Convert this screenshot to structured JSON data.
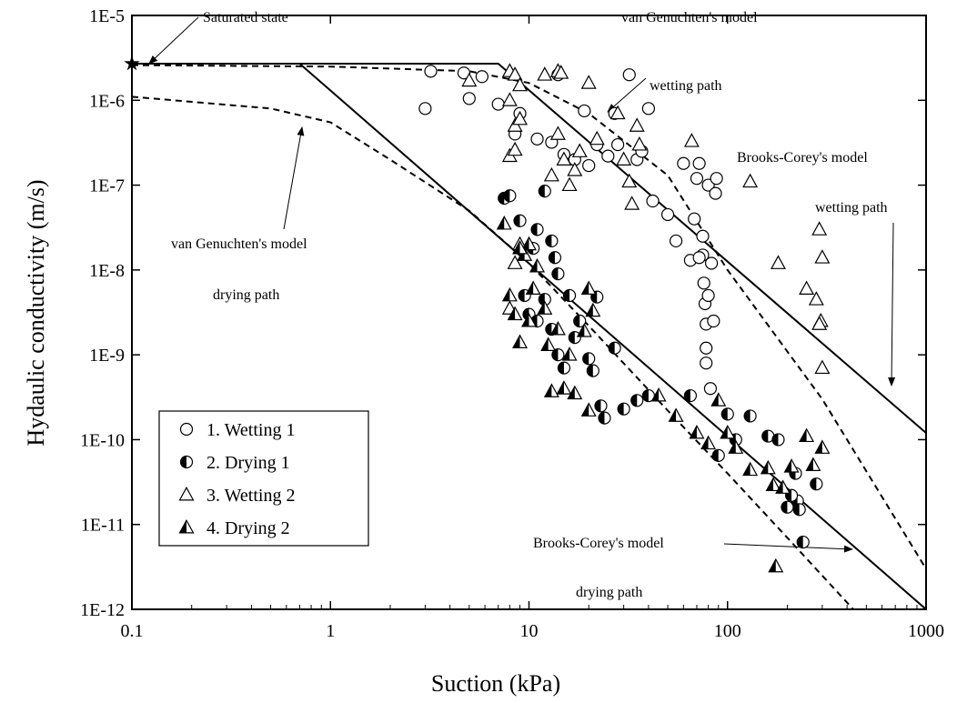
{
  "chart_data": {
    "type": "scatter",
    "x_label": "Suction (kPa)",
    "y_label": "Hydaulic conductivity (m/s)",
    "xscale": "log",
    "yscale": "log",
    "xlim": [
      0.1,
      1000
    ],
    "ylim": [
      1e-12,
      1e-05
    ],
    "xticks": [
      0.1,
      1,
      10,
      100,
      1000
    ],
    "yticks": [
      {
        "value": 1e-12,
        "label": "1E-12"
      },
      {
        "value": 1e-11,
        "label": "1E-11"
      },
      {
        "value": 1e-10,
        "label": "1E-10"
      },
      {
        "value": 1e-09,
        "label": "1E-9"
      },
      {
        "value": 1e-08,
        "label": "1E-8"
      },
      {
        "value": 1e-07,
        "label": "1E-7"
      },
      {
        "value": 1e-06,
        "label": "1E-6"
      },
      {
        "value": 1e-05,
        "label": "1E-5"
      }
    ],
    "legend": "lower left",
    "series": [
      {
        "name": "1. Wetting 1",
        "marker": "circle-open",
        "color": "#000000",
        "x": [
          3,
          3.2,
          4.7,
          5,
          5.8,
          7,
          8.5,
          9,
          11,
          13,
          14,
          15,
          17,
          19,
          20,
          22,
          25,
          27,
          28,
          32,
          35,
          37,
          40,
          42,
          50,
          55,
          60,
          65,
          68,
          70,
          72,
          75,
          76,
          77,
          78,
          78,
          80,
          80,
          82,
          83,
          85,
          87,
          88,
          75,
          72,
          78
        ],
        "values": [
          8e-07,
          2.2e-06,
          2.1e-06,
          1.05e-06,
          1.9e-06,
          9e-07,
          4e-07,
          7e-07,
          3.5e-07,
          3.2e-07,
          2e-06,
          2.3e-07,
          2e-07,
          7.5e-07,
          1.7e-07,
          3e-07,
          2.2e-07,
          7e-07,
          3e-07,
          2e-06,
          2e-07,
          2.5e-07,
          8e-07,
          6.5e-08,
          4.5e-08,
          2.2e-08,
          1.8e-07,
          1.3e-08,
          4e-08,
          1.2e-07,
          1.8e-07,
          1.5e-08,
          7e-09,
          4e-09,
          2.3e-09,
          8e-10,
          1e-07,
          5e-09,
          4e-10,
          1.2e-08,
          2.5e-09,
          8e-08,
          1.2e-07,
          2.5e-08,
          1.4e-08,
          1.2e-09
        ]
      },
      {
        "name": "2. Drying 1",
        "marker": "circle-half",
        "color": "#000000",
        "x": [
          7.5,
          8,
          9,
          10.5,
          11,
          12,
          13,
          13.5,
          14,
          16,
          9.5,
          10,
          11,
          12,
          13,
          14,
          15,
          17,
          18,
          20,
          21,
          22,
          23,
          24,
          27,
          30,
          35,
          40,
          65,
          100,
          110,
          130,
          160,
          180,
          200,
          220,
          225,
          230,
          240,
          280,
          90,
          210
        ],
        "values": [
          7e-08,
          7.5e-08,
          3.8e-08,
          1.8e-08,
          3e-08,
          8.5e-08,
          2.2e-08,
          1.4e-08,
          9e-09,
          5e-09,
          5e-09,
          3e-09,
          2.5e-09,
          4.5e-09,
          2e-09,
          1e-09,
          7e-10,
          1.6e-09,
          2.5e-09,
          9e-10,
          6.5e-10,
          4.8e-09,
          2.5e-10,
          1.8e-10,
          1.2e-09,
          2.3e-10,
          2.9e-10,
          3.3e-10,
          3.3e-10,
          2e-10,
          1e-10,
          1.9e-10,
          1.1e-10,
          1e-10,
          1.6e-11,
          4e-11,
          1.9e-11,
          1.5e-11,
          6.2e-12,
          3e-11,
          6.5e-11,
          2.2e-11
        ]
      },
      {
        "name": "3. Wetting 2",
        "marker": "triangle-open",
        "color": "#000000",
        "x": [
          5,
          8,
          8.5,
          9,
          8,
          8.5,
          9,
          8,
          8.5,
          12,
          14,
          14.5,
          13,
          14,
          15,
          16,
          17,
          18,
          20,
          22,
          28,
          30,
          32,
          33,
          35,
          36,
          66,
          130,
          180,
          250,
          280,
          290,
          300,
          295,
          300,
          290,
          9,
          8.5,
          8
        ],
        "values": [
          1.7e-06,
          2.2e-06,
          2e-06,
          1.5e-06,
          1e-06,
          5e-07,
          6e-07,
          2.2e-07,
          2.6e-07,
          2e-06,
          2.2e-06,
          2.1e-06,
          1.3e-07,
          4e-07,
          2e-07,
          1e-07,
          1.5e-07,
          2.5e-07,
          1.6e-06,
          3.5e-07,
          7e-07,
          2e-07,
          1.1e-07,
          6e-08,
          5e-07,
          3e-07,
          3.3e-07,
          1.1e-07,
          1.2e-08,
          6e-09,
          4.5e-09,
          3e-08,
          1.4e-08,
          2.5e-09,
          7e-10,
          2.3e-09,
          2e-08,
          1.2e-08,
          3.5e-09
        ]
      },
      {
        "name": "4. Drying 2",
        "marker": "triangle-half",
        "color": "#000000",
        "x": [
          7.5,
          8,
          8.5,
          9,
          9.5,
          10,
          10.5,
          11,
          12,
          12.5,
          13,
          14,
          15,
          16,
          17,
          19,
          20,
          21,
          20,
          45,
          55,
          70,
          80,
          90,
          100,
          110,
          130,
          160,
          170,
          175,
          190,
          210,
          250,
          270,
          300,
          9,
          10
        ],
        "values": [
          3.5e-08,
          5e-09,
          3e-09,
          1.4e-09,
          1.5e-08,
          2e-08,
          6e-09,
          1.1e-08,
          3.5e-09,
          1.3e-09,
          3.7e-10,
          2e-09,
          4e-10,
          1e-09,
          3.5e-10,
          1.9e-09,
          6e-09,
          3.3e-09,
          2.2e-10,
          3.3e-10,
          1.9e-10,
          1.2e-10,
          9e-11,
          2.9e-10,
          1.2e-10,
          8e-11,
          4.4e-11,
          4.6e-11,
          2.9e-11,
          3.2e-12,
          2.7e-11,
          4.8e-11,
          1.1e-10,
          5e-11,
          8e-11,
          1.8e-08,
          2.5e-09
        ]
      }
    ],
    "curves": [
      {
        "style": "solid",
        "x": [
          0.1,
          7,
          1000
        ],
        "values": [
          2.7e-06,
          2.7e-06,
          1.2e-10
        ]
      },
      {
        "style": "solid",
        "x": [
          0.1,
          0.7,
          1000
        ],
        "values": [
          2.7e-06,
          2.7e-06,
          1e-12
        ]
      },
      {
        "style": "dashed",
        "x": [
          0.1,
          1,
          5,
          10,
          20,
          50,
          100,
          300,
          1000
        ],
        "values": [
          2.6e-06,
          2.5e-06,
          2.2e-06,
          1.6e-06,
          7e-07,
          1.3e-07,
          1e-08,
          3e-10,
          3e-12
        ]
      },
      {
        "style": "dashed",
        "x": [
          0.1,
          0.5,
          1,
          2,
          5,
          10,
          20,
          50,
          100,
          200,
          430
        ],
        "values": [
          1.1e-06,
          8e-07,
          5.5e-07,
          2e-07,
          5e-08,
          1.2e-08,
          2.2e-09,
          2.2e-10,
          4e-11,
          7e-12,
          1e-12
        ]
      }
    ],
    "saturated_state": {
      "x": 0.1,
      "y": 2.7e-06
    },
    "annotations": [
      "Saturated state",
      "van Genuchten's model",
      "wetting path",
      "Brooks-Corey's model",
      "wetting path",
      "van Genuchten's model",
      "drying path",
      "Brooks-Corey's model",
      "drying path"
    ]
  }
}
